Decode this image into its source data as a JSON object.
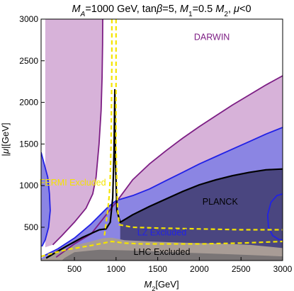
{
  "chart_data": {
    "type": "area",
    "title_parts": [
      {
        "text": "M",
        "italic": true
      },
      {
        "text": "A",
        "italic": true,
        "sub": true
      },
      {
        "text": "=1000 GeV, tan"
      },
      {
        "text": "β",
        "italic": true
      },
      {
        "text": "=5, "
      },
      {
        "text": "M",
        "italic": true
      },
      {
        "text": "1",
        "sub": true
      },
      {
        "text": "=0.5 "
      },
      {
        "text": "M",
        "italic": true
      },
      {
        "text": "2",
        "sub": true
      },
      {
        "text": ", "
      },
      {
        "text": "μ",
        "italic": true
      },
      {
        "text": "<0"
      }
    ],
    "xlabel_parts": [
      {
        "text": "M",
        "italic": true
      },
      {
        "text": "2",
        "sub": true
      },
      {
        "text": "[GeV]"
      }
    ],
    "ylabel_parts": [
      {
        "text": "|"
      },
      {
        "text": "μ",
        "italic": true
      },
      {
        "text": "|[GeV]"
      }
    ],
    "xlim": [
      100,
      3000
    ],
    "ylim": [
      100,
      3000
    ],
    "xticks": [
      500,
      1000,
      1500,
      2000,
      2500,
      3000
    ],
    "yticks": [
      500,
      1000,
      1500,
      2000,
      2500,
      3000
    ],
    "xtick_labels": [
      "500",
      "1000",
      "1500",
      "2000",
      "2500",
      "3000"
    ],
    "ytick_labels": [
      "500",
      "1000",
      "1500",
      "2000",
      "2500",
      "3000"
    ],
    "colors": {
      "darwin_fill": "#d7b2d9",
      "darwin_line": "#7d1e84",
      "lz_fill": "#8b85e3",
      "lz_line": "#2121e6",
      "planck_fill": "#4a4680",
      "planck_line": "#000000",
      "lhc_fill": "#a89c96",
      "lhc_dark": "#7a7576",
      "fermi_line": "#f4e400",
      "frame": "#000000"
    },
    "regions": [
      {
        "name": "DARWIN",
        "role": "darwin",
        "polygons": [
          [
            [
              100,
              100
            ],
            [
              3000,
              100
            ],
            [
              3000,
              2320
            ],
            [
              2800,
              2210
            ],
            [
              2600,
              2090
            ],
            [
              2400,
              1970
            ],
            [
              2200,
              1840
            ],
            [
              2000,
              1710
            ],
            [
              1800,
              1570
            ],
            [
              1600,
              1420
            ],
            [
              1400,
              1260
            ],
            [
              1200,
              1070
            ],
            [
              1000,
              800
            ],
            [
              700,
              420
            ],
            [
              380,
              200
            ],
            [
              180,
              130
            ],
            [
              100,
              100
            ]
          ],
          [
            [
              150,
              3000
            ],
            [
              840,
              3000
            ],
            [
              838,
              2700
            ],
            [
              832,
              2300
            ],
            [
              820,
              1900
            ],
            [
              796,
              1500
            ],
            [
              760,
              1100
            ],
            [
              720,
              900
            ],
            [
              640,
              730
            ],
            [
              500,
              560
            ],
            [
              350,
              400
            ],
            [
              240,
              290
            ],
            [
              150,
              260
            ]
          ]
        ]
      },
      {
        "name": "LZ Excluded",
        "role": "lz",
        "polygons": [
          [
            [
              100,
              100
            ],
            [
              3000,
              100
            ],
            [
              3000,
              1700
            ],
            [
              2800,
              1620
            ],
            [
              2600,
              1530
            ],
            [
              2400,
              1440
            ],
            [
              2200,
              1350
            ],
            [
              2000,
              1260
            ],
            [
              1800,
              1160
            ],
            [
              1600,
              1060
            ],
            [
              1400,
              960
            ],
            [
              1200,
              880
            ],
            [
              1000,
              820
            ],
            [
              800,
              640
            ],
            [
              600,
              450
            ],
            [
              400,
              300
            ],
            [
              200,
              180
            ],
            [
              100,
              130
            ]
          ],
          [
            [
              100,
              1400
            ],
            [
              140,
              1250
            ],
            [
              180,
              1100
            ],
            [
              200,
              900
            ],
            [
              210,
              700
            ],
            [
              190,
              500
            ],
            [
              150,
              350
            ],
            [
              100,
              260
            ]
          ],
          [
            [
              3000,
              900
            ],
            [
              2930,
              880
            ],
            [
              2860,
              800
            ],
            [
              2820,
              650
            ],
            [
              2830,
              500
            ],
            [
              2880,
              400
            ],
            [
              2960,
              350
            ],
            [
              3000,
              350
            ]
          ]
        ]
      },
      {
        "name": "PLANCK",
        "role": "planck",
        "polygons": [
          [
            [
              1050,
              560
            ],
            [
              1200,
              650
            ],
            [
              1400,
              750
            ],
            [
              1600,
              840
            ],
            [
              1800,
              930
            ],
            [
              2000,
              1010
            ],
            [
              2200,
              1070
            ],
            [
              2400,
              1120
            ],
            [
              2600,
              1160
            ],
            [
              2800,
              1190
            ],
            [
              3000,
              1200
            ],
            [
              3000,
              100
            ],
            [
              1050,
              100
            ]
          ]
        ]
      },
      {
        "name": "LHC Excluded",
        "role": "lhc",
        "polygons": [
          [
            [
              100,
              100
            ],
            [
              3000,
              100
            ],
            [
              3000,
              250
            ],
            [
              2800,
              270
            ],
            [
              2600,
              290
            ],
            [
              2200,
              305
            ],
            [
              1800,
              315
            ],
            [
              1400,
              330
            ],
            [
              1100,
              345
            ],
            [
              950,
              375
            ],
            [
              850,
              370
            ],
            [
              700,
              330
            ],
            [
              500,
              280
            ],
            [
              300,
              200
            ],
            [
              150,
              130
            ],
            [
              100,
              110
            ]
          ],
          [
            [
              350,
              100
            ],
            [
              3000,
              100
            ],
            [
              3000,
              150
            ],
            [
              2400,
              175
            ],
            [
              1800,
              195
            ],
            [
              1200,
              220
            ],
            [
              800,
              230
            ],
            [
              500,
              200
            ],
            [
              380,
              130
            ]
          ]
        ]
      }
    ],
    "curves": [
      {
        "name": "DARWIN boundary",
        "role": "darwin_line",
        "points": [
          [
            280,
            140
          ],
          [
            500,
            300
          ],
          [
            700,
            420
          ],
          [
            1000,
            800
          ],
          [
            1200,
            1070
          ],
          [
            1400,
            1260
          ],
          [
            1600,
            1420
          ],
          [
            1800,
            1570
          ],
          [
            2000,
            1710
          ],
          [
            2200,
            1840
          ],
          [
            2400,
            1970
          ],
          [
            2600,
            2090
          ],
          [
            2800,
            2210
          ],
          [
            3000,
            2320
          ]
        ]
      },
      {
        "name": "DARWIN island boundary",
        "role": "darwin_line",
        "points": [
          [
            840,
            3000
          ],
          [
            838,
            2700
          ],
          [
            832,
            2300
          ],
          [
            820,
            1900
          ],
          [
            796,
            1500
          ],
          [
            760,
            1100
          ],
          [
            720,
            900
          ],
          [
            640,
            730
          ],
          [
            500,
            560
          ],
          [
            350,
            400
          ],
          [
            240,
            290
          ]
        ]
      },
      {
        "name": "LZ boundary",
        "role": "lz_line",
        "points": [
          [
            120,
            150
          ],
          [
            300,
            240
          ],
          [
            500,
            370
          ],
          [
            700,
            540
          ],
          [
            900,
            740
          ],
          [
            1000,
            820
          ],
          [
            1200,
            880
          ],
          [
            1400,
            960
          ],
          [
            1600,
            1060
          ],
          [
            1800,
            1160
          ],
          [
            2000,
            1260
          ],
          [
            2200,
            1350
          ],
          [
            2400,
            1440
          ],
          [
            2600,
            1530
          ],
          [
            2800,
            1620
          ],
          [
            3000,
            1700
          ]
        ]
      },
      {
        "name": "LZ left boundary",
        "role": "lz_line",
        "points": [
          [
            100,
            1400
          ],
          [
            140,
            1250
          ],
          [
            180,
            1100
          ],
          [
            200,
            900
          ],
          [
            210,
            700
          ],
          [
            190,
            500
          ],
          [
            150,
            350
          ],
          [
            110,
            270
          ]
        ]
      },
      {
        "name": "LZ right boundary",
        "role": "lz_line",
        "points": [
          [
            3000,
            900
          ],
          [
            2930,
            880
          ],
          [
            2860,
            800
          ],
          [
            2820,
            650
          ],
          [
            2830,
            500
          ],
          [
            2880,
            400
          ],
          [
            2960,
            350
          ],
          [
            3000,
            350
          ]
        ]
      },
      {
        "name": "PLANCK boundary",
        "role": "planck_line",
        "points": [
          [
            160,
            130
          ],
          [
            400,
            270
          ],
          [
            600,
            380
          ],
          [
            800,
            470
          ],
          [
            880,
            480
          ],
          [
            930,
            560
          ],
          [
            960,
            850
          ],
          [
            975,
            1400
          ],
          [
            985,
            2150
          ],
          [
            992,
            1300
          ],
          [
            1010,
            700
          ],
          [
            1050,
            560
          ],
          [
            1200,
            650
          ],
          [
            1400,
            750
          ],
          [
            1600,
            840
          ],
          [
            1800,
            930
          ],
          [
            2000,
            1010
          ],
          [
            2200,
            1070
          ],
          [
            2400,
            1120
          ],
          [
            2600,
            1160
          ],
          [
            2800,
            1190
          ],
          [
            3000,
            1200
          ]
        ]
      },
      {
        "name": "FERMI boundary",
        "role": "fermi_line",
        "dashed": true,
        "points": [
          [
            1000,
            3000
          ],
          [
            1000,
            2500
          ],
          [
            1000,
            2000
          ],
          [
            1000,
            1500
          ],
          [
            1010,
            1000
          ],
          [
            1020,
            700
          ],
          [
            1040,
            530
          ],
          [
            1200,
            500
          ],
          [
            1500,
            490
          ],
          [
            2000,
            480
          ],
          [
            2500,
            470
          ],
          [
            3000,
            470
          ]
        ]
      },
      {
        "name": "FERMI lower boundary",
        "role": "fermi_line",
        "dashed": true,
        "points": [
          [
            100,
            150
          ],
          [
            400,
            230
          ],
          [
            700,
            280
          ],
          [
            950,
            330
          ],
          [
            1100,
            310
          ],
          [
            1300,
            300
          ],
          [
            1600,
            300
          ],
          [
            2000,
            300
          ],
          [
            2500,
            310
          ],
          [
            3000,
            330
          ]
        ]
      },
      {
        "name": "FERMI left vertical",
        "role": "fermi_line",
        "dashed": true,
        "points": [
          [
            950,
            3000
          ],
          [
            950,
            2500
          ],
          [
            945,
            2000
          ],
          [
            940,
            1500
          ],
          [
            930,
            1100
          ],
          [
            920,
            900
          ],
          [
            900,
            700
          ],
          [
            880,
            550
          ],
          [
            860,
            400
          ]
        ]
      }
    ],
    "annotations": [
      {
        "text": "DARWIN",
        "x": 2150,
        "y": 2750,
        "role": "darwin_line"
      },
      {
        "text": "FERMI Excluded",
        "x": 480,
        "y": 1000,
        "role": "fermi_line"
      },
      {
        "text": "PLANCK",
        "x": 2250,
        "y": 770,
        "role": "planck_line"
      },
      {
        "text": "LZ Excluded",
        "x": 1550,
        "y": 400,
        "role": "lz_line"
      },
      {
        "text": "LHC Excluded",
        "x": 1550,
        "y": 170,
        "role": "planck_line"
      }
    ]
  }
}
